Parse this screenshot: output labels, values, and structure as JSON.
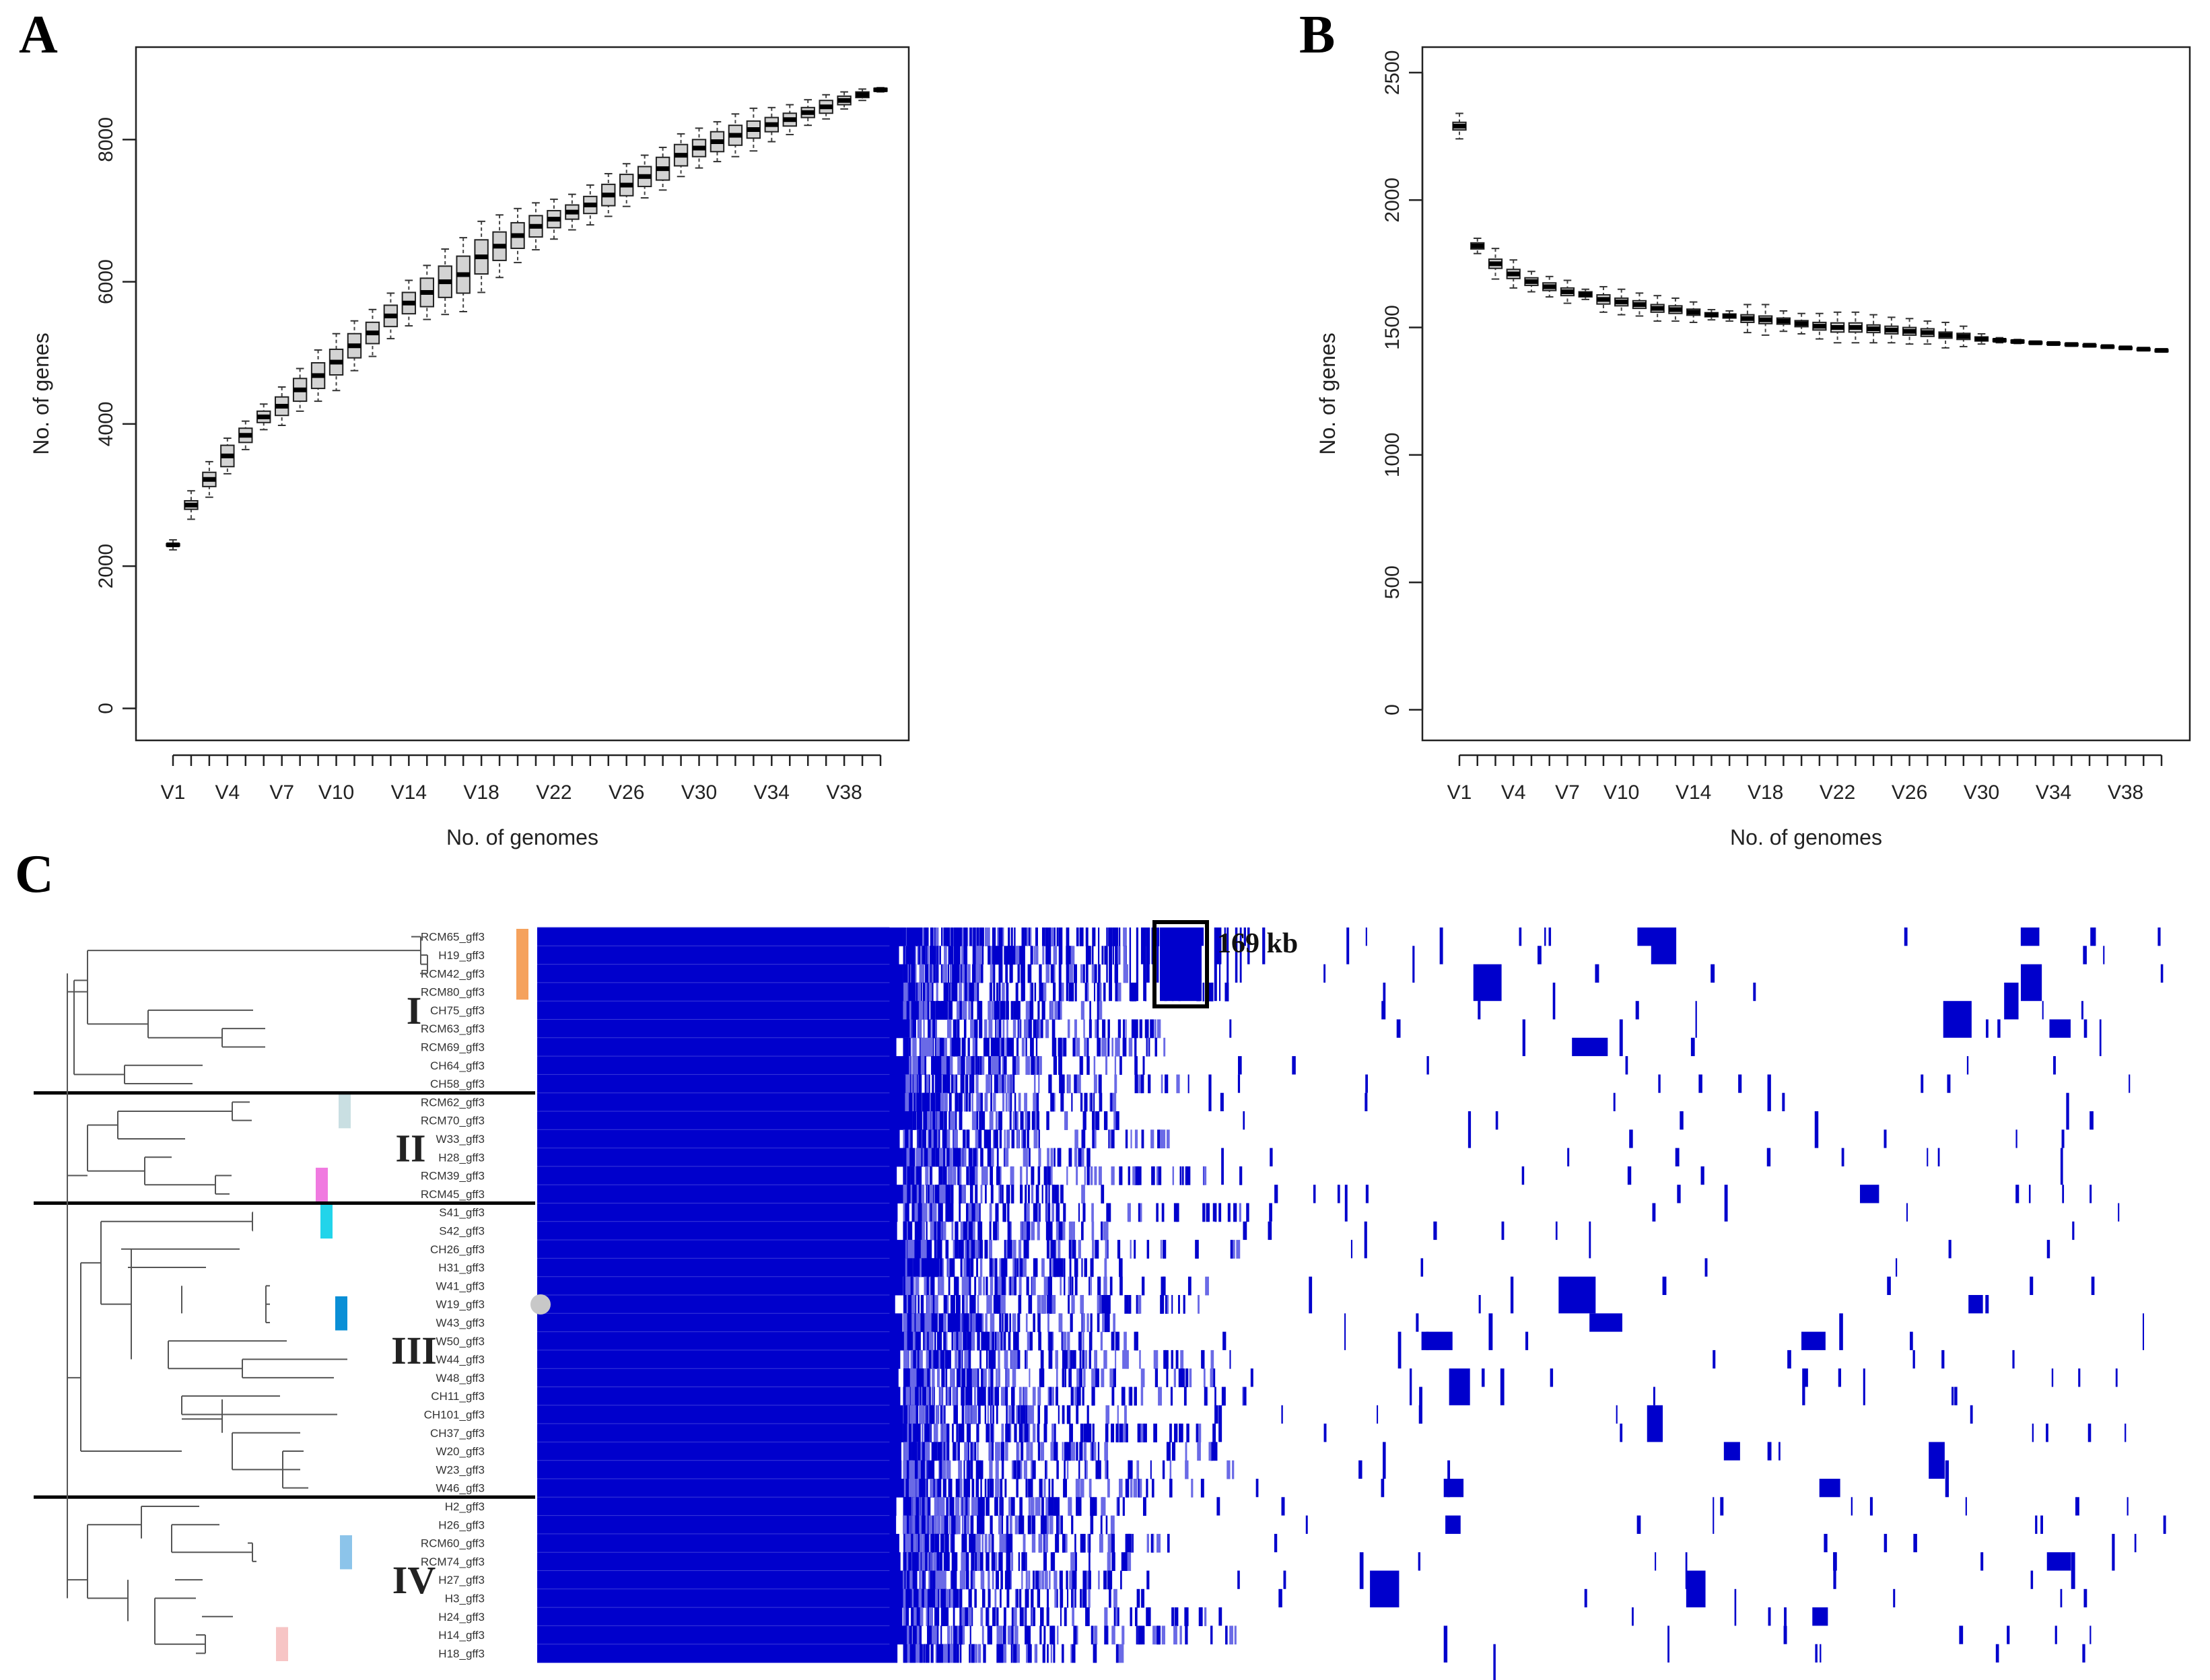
{
  "panels": {
    "a": "A",
    "b": "B",
    "c": "C"
  },
  "colors": {
    "box_fill": "#d3d3d3",
    "heat": "#0000cc",
    "heat_light": "#6a6ae6",
    "tree": "#555555"
  },
  "chart_data": [
    {
      "id": "A",
      "type": "box",
      "title": "",
      "xlabel": "No. of genomes",
      "ylabel": "No. of genes",
      "ylim": [
        -450,
        9300
      ],
      "yticks": [
        0,
        2000,
        4000,
        6000,
        8000
      ],
      "n_boxes": 40,
      "xtick_labels": [
        "V1",
        "V4",
        "V7",
        "V10",
        "V14",
        "V18",
        "V22",
        "V26",
        "V30",
        "V34",
        "V38"
      ],
      "xtick_positions": [
        1,
        4,
        7,
        10,
        14,
        18,
        22,
        26,
        30,
        34,
        38
      ],
      "medians": [
        2300,
        2860,
        3220,
        3550,
        3840,
        4100,
        4250,
        4480,
        4680,
        4870,
        5100,
        5280,
        5520,
        5700,
        5850,
        6000,
        6100,
        6350,
        6500,
        6650,
        6780,
        6880,
        6980,
        7080,
        7220,
        7360,
        7480,
        7590,
        7780,
        7880,
        7970,
        8060,
        8140,
        8210,
        8280,
        8380,
        8460,
        8550,
        8630,
        8700
      ],
      "box_half_heights": [
        15,
        60,
        100,
        150,
        100,
        80,
        130,
        160,
        180,
        180,
        170,
        150,
        150,
        150,
        200,
        220,
        260,
        240,
        200,
        180,
        150,
        120,
        100,
        120,
        150,
        150,
        140,
        160,
        150,
        120,
        140,
        140,
        120,
        100,
        90,
        70,
        90,
        60,
        40,
        20
      ],
      "whisker_extents": [
        70,
        200,
        250,
        250,
        200,
        180,
        270,
        300,
        360,
        400,
        350,
        330,
        320,
        320,
        380,
        460,
        520,
        500,
        440,
        380,
        330,
        280,
        250,
        280,
        300,
        300,
        300,
        300,
        300,
        280,
        280,
        300,
        300,
        240,
        210,
        180,
        170,
        120,
        80,
        30
      ]
    },
    {
      "id": "B",
      "type": "box",
      "title": "",
      "xlabel": "No. of genomes",
      "ylabel": "No. of genes",
      "ylim": [
        -120,
        2600
      ],
      "yticks": [
        0,
        500,
        1000,
        1500,
        2000,
        2500
      ],
      "n_boxes": 40,
      "xtick_labels": [
        "V1",
        "V4",
        "V7",
        "V10",
        "V14",
        "V18",
        "V22",
        "V26",
        "V30",
        "V34",
        "V38"
      ],
      "xtick_positions": [
        1,
        4,
        7,
        10,
        14,
        18,
        22,
        26,
        30,
        34,
        38
      ],
      "medians": [
        2290,
        1820,
        1750,
        1710,
        1680,
        1660,
        1640,
        1630,
        1610,
        1600,
        1590,
        1575,
        1570,
        1560,
        1550,
        1545,
        1535,
        1530,
        1525,
        1515,
        1505,
        1500,
        1500,
        1495,
        1490,
        1485,
        1480,
        1470,
        1465,
        1455,
        1450,
        1445,
        1440,
        1437,
        1433,
        1430,
        1425,
        1420,
        1415,
        1410
      ],
      "box_half_heights": [
        15,
        12,
        18,
        18,
        15,
        15,
        15,
        10,
        18,
        15,
        15,
        15,
        15,
        12,
        8,
        8,
        15,
        15,
        12,
        12,
        15,
        18,
        18,
        15,
        15,
        15,
        15,
        12,
        12,
        8,
        5,
        5,
        4,
        4,
        4,
        3,
        3,
        3,
        3,
        3
      ],
      "whisker_extents": [
        50,
        30,
        60,
        55,
        40,
        40,
        45,
        20,
        50,
        50,
        45,
        50,
        45,
        40,
        20,
        20,
        55,
        60,
        40,
        40,
        50,
        60,
        60,
        55,
        50,
        50,
        45,
        50,
        40,
        20,
        10,
        8,
        6,
        6,
        6,
        5,
        5,
        5,
        5,
        4
      ]
    },
    {
      "id": "C",
      "type": "heatmap",
      "n_rows": 40,
      "rows": [
        "RCM65_gff3",
        "H19_gff3",
        "RCM42_gff3",
        "RCM80_gff3",
        "CH75_gff3",
        "RCM63_gff3",
        "RCM69_gff3",
        "CH64_gff3",
        "CH58_gff3",
        "RCM62_gff3",
        "RCM70_gff3",
        "W33_gff3",
        "H28_gff3",
        "RCM39_gff3",
        "RCM45_gff3",
        "S41_gff3",
        "S42_gff3",
        "CH26_gff3",
        "H31_gff3",
        "W41_gff3",
        "W19_gff3",
        "W43_gff3",
        "W50_gff3",
        "W44_gff3",
        "W48_gff3",
        "CH11_gff3",
        "CH101_gff3",
        "CH37_gff3",
        "W20_gff3",
        "W23_gff3",
        "W46_gff3",
        "H2_gff3",
        "H26_gff3",
        "RCM60_gff3",
        "RCM74_gff3",
        "H27_gff3",
        "H3_gff3",
        "H24_gff3",
        "H14_gff3",
        "H18_gff3"
      ],
      "clades": [
        {
          "label": "I",
          "first_row": 0,
          "last_row": 8
        },
        {
          "label": "II",
          "first_row": 9,
          "last_row": 14
        },
        {
          "label": "III",
          "first_row": 15,
          "last_row": 30
        },
        {
          "label": "IV",
          "first_row": 31,
          "last_row": 39
        }
      ],
      "markers": [
        {
          "row_from": 0,
          "row_to": 3,
          "color": "#f5a25d"
        },
        {
          "row_from": 9,
          "row_to": 10,
          "color": "#c9dfe2"
        },
        {
          "row_from": 13,
          "row_to": 14,
          "color": "#f07ae0"
        },
        {
          "row_from": 15,
          "row_to": 16,
          "color": "#22d4ea"
        },
        {
          "row_from": 20,
          "row_to": 21,
          "color": "#0a8fd6"
        },
        {
          "row_from": 33,
          "row_to": 34,
          "color": "#8cc4ea"
        },
        {
          "row_from": 38,
          "row_to": 39,
          "color": "#f7c5c5"
        }
      ],
      "annotation": "169 kb",
      "highlight_rows": [
        0,
        3
      ],
      "core_fraction": 0.22
    }
  ]
}
